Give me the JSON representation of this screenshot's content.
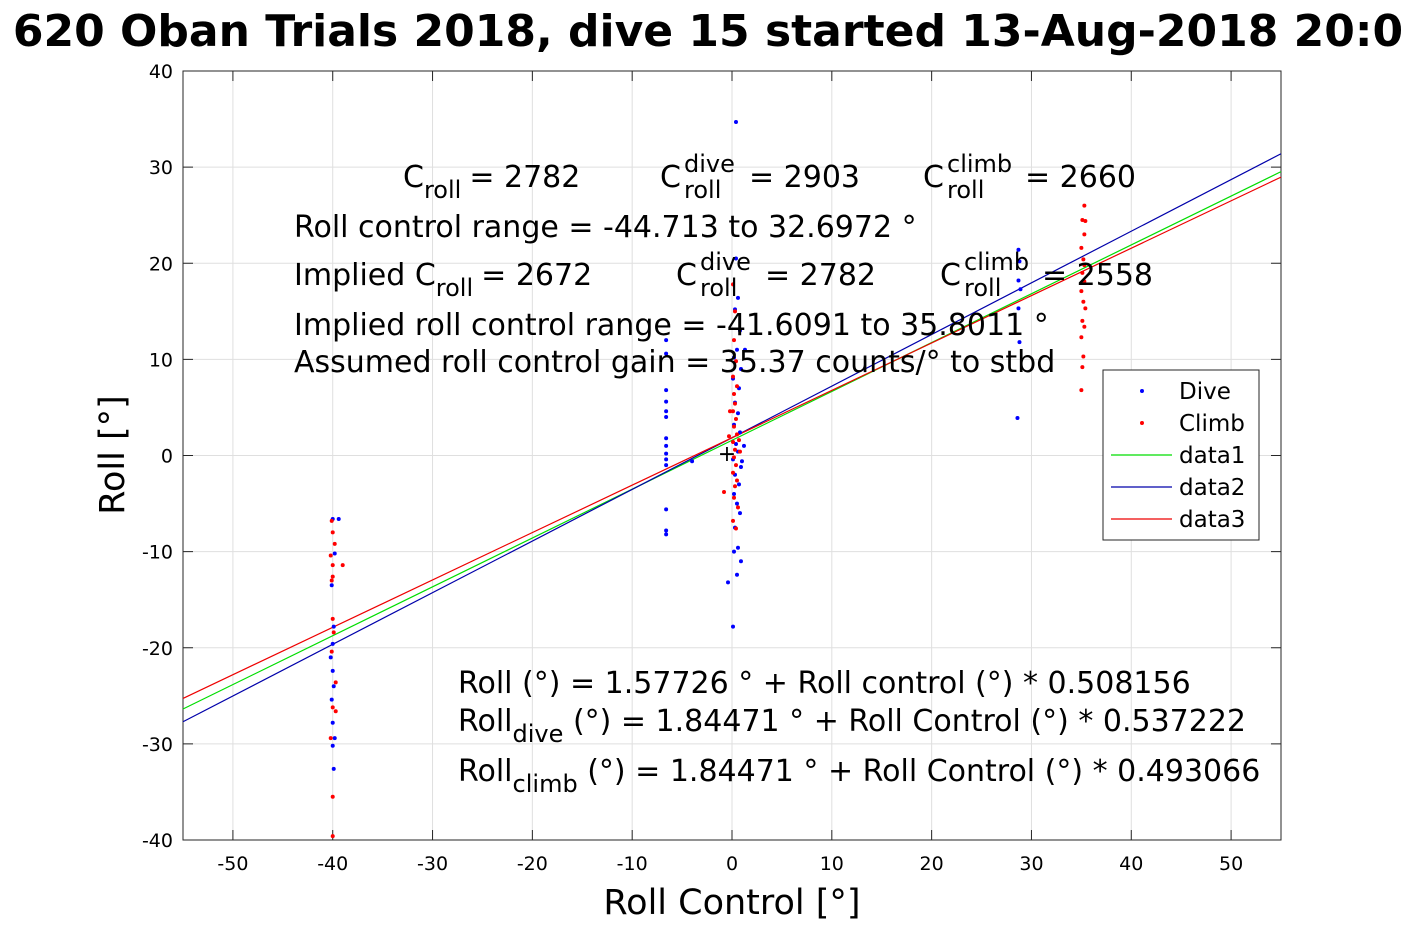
{
  "chart_data": {
    "type": "scatter",
    "title": "620 Oban Trials 2018, dive 15 started 13-Aug-2018 20:0",
    "xlabel": "Roll Control [°]",
    "ylabel": "Roll [°]",
    "xlim": [
      -55,
      55
    ],
    "ylim": [
      -40,
      40
    ],
    "xticks": [
      -50,
      -40,
      -30,
      -20,
      -10,
      0,
      10,
      20,
      30,
      40,
      50
    ],
    "yticks": [
      -40,
      -30,
      -20,
      -10,
      0,
      10,
      20,
      30,
      40
    ],
    "xtick_labels": [
      "-50",
      "-40",
      "-30",
      "-20",
      "-10",
      "0",
      "10",
      "20",
      "30",
      "40",
      "50"
    ],
    "ytick_labels": [
      "-40",
      "-30",
      "-20",
      "-10",
      "0",
      "10",
      "20",
      "30",
      "40"
    ],
    "grid": true,
    "legend_position": "right, upper-middle",
    "series": [
      {
        "name": "Dive",
        "kind": "points",
        "color": "#0000ff",
        "points": [
          [
            -40,
            -6.6
          ],
          [
            -39.8,
            -10.2
          ],
          [
            -40.1,
            -13.5
          ],
          [
            -39.9,
            -17.8
          ],
          [
            -40,
            -19.6
          ],
          [
            -40.2,
            -21.0
          ],
          [
            -40,
            -22.4
          ],
          [
            -39.9,
            -24.0
          ],
          [
            -40.1,
            -25.4
          ],
          [
            -40,
            -27.8
          ],
          [
            -39.8,
            -29.4
          ],
          [
            -40,
            -30.2
          ],
          [
            -39.9,
            -32.6
          ],
          [
            -39.4,
            -6.6
          ],
          [
            -6.6,
            12.0
          ],
          [
            -6.6,
            10.6
          ],
          [
            -6.6,
            6.8
          ],
          [
            -6.6,
            5.6
          ],
          [
            -6.6,
            4.6
          ],
          [
            -6.6,
            4.0
          ],
          [
            -6.6,
            1.8
          ],
          [
            -6.6,
            1.0
          ],
          [
            -6.6,
            0.2
          ],
          [
            -6.6,
            -0.4
          ],
          [
            -6.6,
            -1.0
          ],
          [
            -6.6,
            -5.6
          ],
          [
            -6.6,
            -7.8
          ],
          [
            -6.6,
            -8.2
          ],
          [
            -4,
            -0.6
          ],
          [
            0.4,
            34.7
          ],
          [
            0.4,
            20.5
          ],
          [
            0.6,
            16.4
          ],
          [
            0.3,
            15.2
          ],
          [
            0.8,
            13.0
          ],
          [
            0.5,
            11.0
          ],
          [
            0.2,
            10.2
          ],
          [
            0.9,
            9.0
          ],
          [
            0.1,
            8.0
          ],
          [
            0.7,
            7.0
          ],
          [
            0.3,
            5.5
          ],
          [
            0.6,
            4.4
          ],
          [
            0.2,
            3.2
          ],
          [
            0.8,
            2.4
          ],
          [
            0.4,
            1.2
          ],
          [
            0.6,
            0.4
          ],
          [
            0.1,
            -0.4
          ],
          [
            0.9,
            -1.2
          ],
          [
            0.3,
            -2.0
          ],
          [
            0.7,
            -3.0
          ],
          [
            0.2,
            -4.0
          ],
          [
            0.5,
            -5.0
          ],
          [
            0.8,
            -6.0
          ],
          [
            0.3,
            -7.5
          ],
          [
            0.6,
            -9.6
          ],
          [
            0.2,
            -10.0
          ],
          [
            0.9,
            -11.0
          ],
          [
            0.5,
            -12.4
          ],
          [
            -0.4,
            -13.2
          ],
          [
            0.1,
            -17.8
          ],
          [
            1.2,
            1.0
          ],
          [
            1.0,
            -0.6
          ],
          [
            1.3,
            11.0
          ],
          [
            28.7,
            21.4
          ],
          [
            28.8,
            20.2
          ],
          [
            28.7,
            18.2
          ],
          [
            28.9,
            17.3
          ],
          [
            28.7,
            15.3
          ],
          [
            28.8,
            11.8
          ],
          [
            28.6,
            3.9
          ]
        ]
      },
      {
        "name": "Climb",
        "kind": "points",
        "color": "#ff0000",
        "points": [
          [
            -40.1,
            -6.8
          ],
          [
            -40,
            -8.0
          ],
          [
            -39.8,
            -9.2
          ],
          [
            -40.2,
            -10.4
          ],
          [
            -40,
            -11.4
          ],
          [
            -39,
            -11.4
          ],
          [
            -40,
            -12.6
          ],
          [
            -40.1,
            -13.0
          ],
          [
            -40,
            -17.0
          ],
          [
            -39.9,
            -18.4
          ],
          [
            -40.1,
            -20.4
          ],
          [
            -39.7,
            -23.6
          ],
          [
            -40,
            -26.2
          ],
          [
            -39.7,
            -26.6
          ],
          [
            -40.2,
            -29.4
          ],
          [
            -40,
            -35.5
          ],
          [
            -40,
            -39.6
          ],
          [
            -0.8,
            -3.8
          ],
          [
            0.1,
            17.8
          ],
          [
            0.3,
            15.0
          ],
          [
            0.2,
            12.0
          ],
          [
            0.4,
            9.8
          ],
          [
            0.1,
            8.2
          ],
          [
            0.5,
            7.2
          ],
          [
            0.2,
            6.4
          ],
          [
            0.3,
            5.4
          ],
          [
            0.1,
            4.6
          ],
          [
            0.4,
            3.8
          ],
          [
            0.2,
            3.0
          ],
          [
            0.5,
            2.2
          ],
          [
            0.1,
            1.4
          ],
          [
            0.3,
            0.6
          ],
          [
            0.2,
            -0.2
          ],
          [
            0.4,
            -1.0
          ],
          [
            0.1,
            -1.8
          ],
          [
            0.5,
            -2.6
          ],
          [
            0.3,
            -3.2
          ],
          [
            0.2,
            -4.4
          ],
          [
            0.6,
            -5.4
          ],
          [
            0.1,
            -6.8
          ],
          [
            0.4,
            -7.6
          ],
          [
            -0.3,
            2.0
          ],
          [
            -0.2,
            4.6
          ],
          [
            0.7,
            1.6
          ],
          [
            0.8,
            0.4
          ],
          [
            35.3,
            26.0
          ],
          [
            35.1,
            24.5
          ],
          [
            35.3,
            23.0
          ],
          [
            35.0,
            21.6
          ],
          [
            35.2,
            20.4
          ],
          [
            35.3,
            19.8
          ],
          [
            35.1,
            19.0
          ],
          [
            35.3,
            18.1
          ],
          [
            35.0,
            17.1
          ],
          [
            35.2,
            16.0
          ],
          [
            35.4,
            15.3
          ],
          [
            35.1,
            14.0
          ],
          [
            35.3,
            13.4
          ],
          [
            35.0,
            12.3
          ],
          [
            35.2,
            10.3
          ],
          [
            35.1,
            9.2
          ],
          [
            35.0,
            6.8
          ],
          [
            35.4,
            24.4
          ]
        ]
      },
      {
        "name": "data1",
        "kind": "line",
        "color": "#00dd00",
        "x": [
          -55,
          55
        ],
        "y": [
          -26.37,
          29.53
        ]
      },
      {
        "name": "data2",
        "kind": "line",
        "color": "#0000aa",
        "x": [
          -55,
          55
        ],
        "y": [
          -27.7,
          31.39
        ]
      },
      {
        "name": "data3",
        "kind": "line",
        "color": "#ee0000",
        "x": [
          -55,
          55
        ],
        "y": [
          -25.27,
          28.96
        ]
      }
    ],
    "annotations": {
      "c_roll": "C",
      "c_roll_sub": "roll",
      "c_roll_val": "= 2782",
      "c_roll_dive": "C",
      "c_roll_dive_sup": "dive",
      "c_roll_dive_sub": "roll",
      "c_roll_dive_val": "= 2903",
      "c_roll_climb": "C",
      "c_roll_climb_sup": "climb",
      "c_roll_climb_sub": "roll",
      "c_roll_climb_val": "= 2660",
      "range_line": "Roll control range = -44.713 to 32.6972 °",
      "implied_c_prefix": "Implied C",
      "implied_c_sub": "roll",
      "implied_c_val": "= 2672",
      "implied_dive": "C",
      "implied_dive_sup": "dive",
      "implied_dive_sub": "roll",
      "implied_dive_val": "= 2782",
      "implied_climb": "C",
      "implied_climb_sup": "climb",
      "implied_climb_sub": "roll",
      "implied_climb_val": "= 2558",
      "implied_range_line": "Implied roll control range = -41.6091 to 35.8011 °",
      "gain_line": "Assumed roll control gain = 35.37 counts/° to stbd",
      "fit_line": "Roll (°) = 1.57726 ° + Roll control (°) * 0.508156",
      "fit_dive_a": "Roll",
      "fit_dive_sub": "dive",
      "fit_dive_b": " (°) = 1.84471 ° + Roll Control (°) * 0.537222",
      "fit_climb_a": "Roll",
      "fit_climb_sub": "climb",
      "fit_climb_b": " (°) = 1.84471 ° + Roll Control (°) * 0.493066"
    }
  }
}
